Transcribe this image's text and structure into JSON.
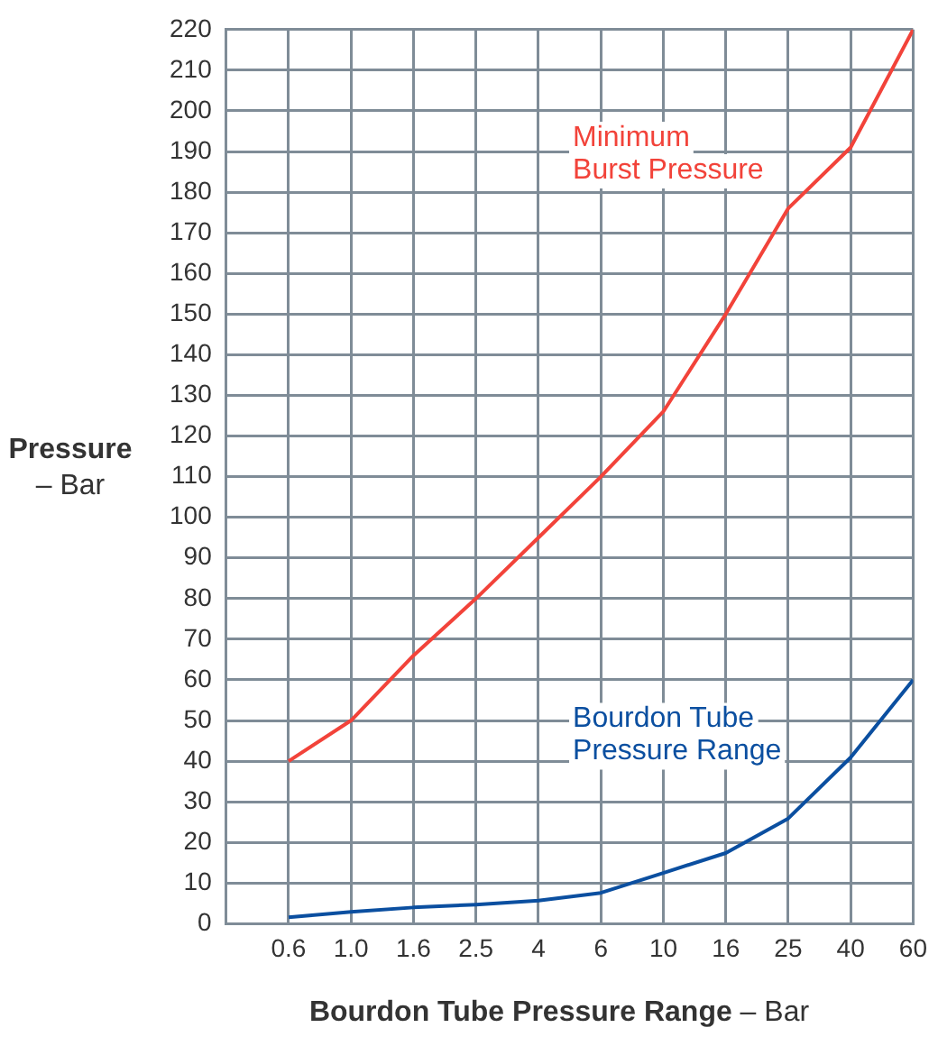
{
  "chart_data": {
    "type": "line",
    "xlabel": "Bourdon Tube Pressure Range – Bar",
    "ylabel": "Pressure – Bar",
    "categories": [
      "0.6",
      "1.0",
      "1.6",
      "2.5",
      "4",
      "6",
      "10",
      "16",
      "25",
      "40",
      "60"
    ],
    "series": [
      {
        "name": "Minimum Burst Pressure",
        "color": "#f2433a",
        "values": [
          40,
          50,
          66,
          80,
          95,
          110,
          126,
          150,
          176,
          191,
          220
        ]
      },
      {
        "name": "Bourdon Tube Pressure Range",
        "color": "#0b4fa0",
        "values": [
          1.6,
          2.9,
          4,
          4.7,
          5.7,
          7.6,
          12.5,
          17.4,
          25.9,
          40.9,
          60
        ]
      }
    ],
    "ylim": [
      0,
      220
    ],
    "yticks": [
      0,
      10,
      20,
      30,
      40,
      50,
      60,
      70,
      80,
      90,
      100,
      110,
      120,
      130,
      140,
      150,
      160,
      170,
      180,
      190,
      200,
      210,
      220
    ],
    "grid": true,
    "legend": false,
    "marker": "none",
    "line_style": "solid"
  }
}
